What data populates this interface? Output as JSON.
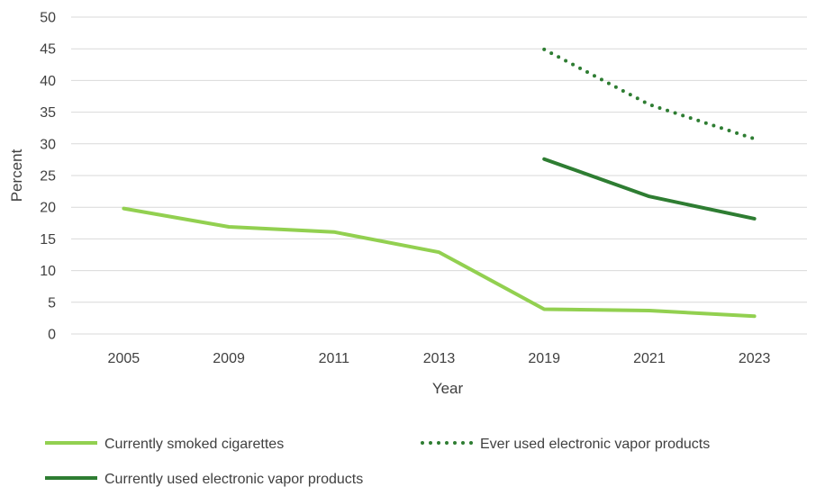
{
  "chart_data": {
    "type": "line",
    "categories": [
      "2005",
      "2009",
      "2011",
      "2013",
      "2019",
      "2021",
      "2023"
    ],
    "series": [
      {
        "name": "Currently smoked cigarettes",
        "values": [
          19.8,
          16.9,
          16.1,
          12.9,
          3.9,
          3.7,
          2.8
        ],
        "color": "#92d050",
        "dash": "solid"
      },
      {
        "name": "Ever used electronic vapor products",
        "values": [
          null,
          null,
          null,
          null,
          44.9,
          36.2,
          30.8
        ],
        "color": "#2e7d32",
        "dash": "dotted"
      },
      {
        "name": "Currently used electronic vapor products",
        "values": [
          null,
          null,
          null,
          null,
          27.6,
          21.7,
          18.2
        ],
        "color": "#2e7d32",
        "dash": "solid"
      }
    ],
    "title": "",
    "xlabel": "Year",
    "ylabel": "Percent",
    "ylim": [
      0,
      50
    ],
    "yticks": [
      "0",
      "5",
      "10",
      "15",
      "20",
      "25",
      "30",
      "35",
      "40",
      "45",
      "50"
    ],
    "grid": true,
    "legend_position": "bottom"
  }
}
